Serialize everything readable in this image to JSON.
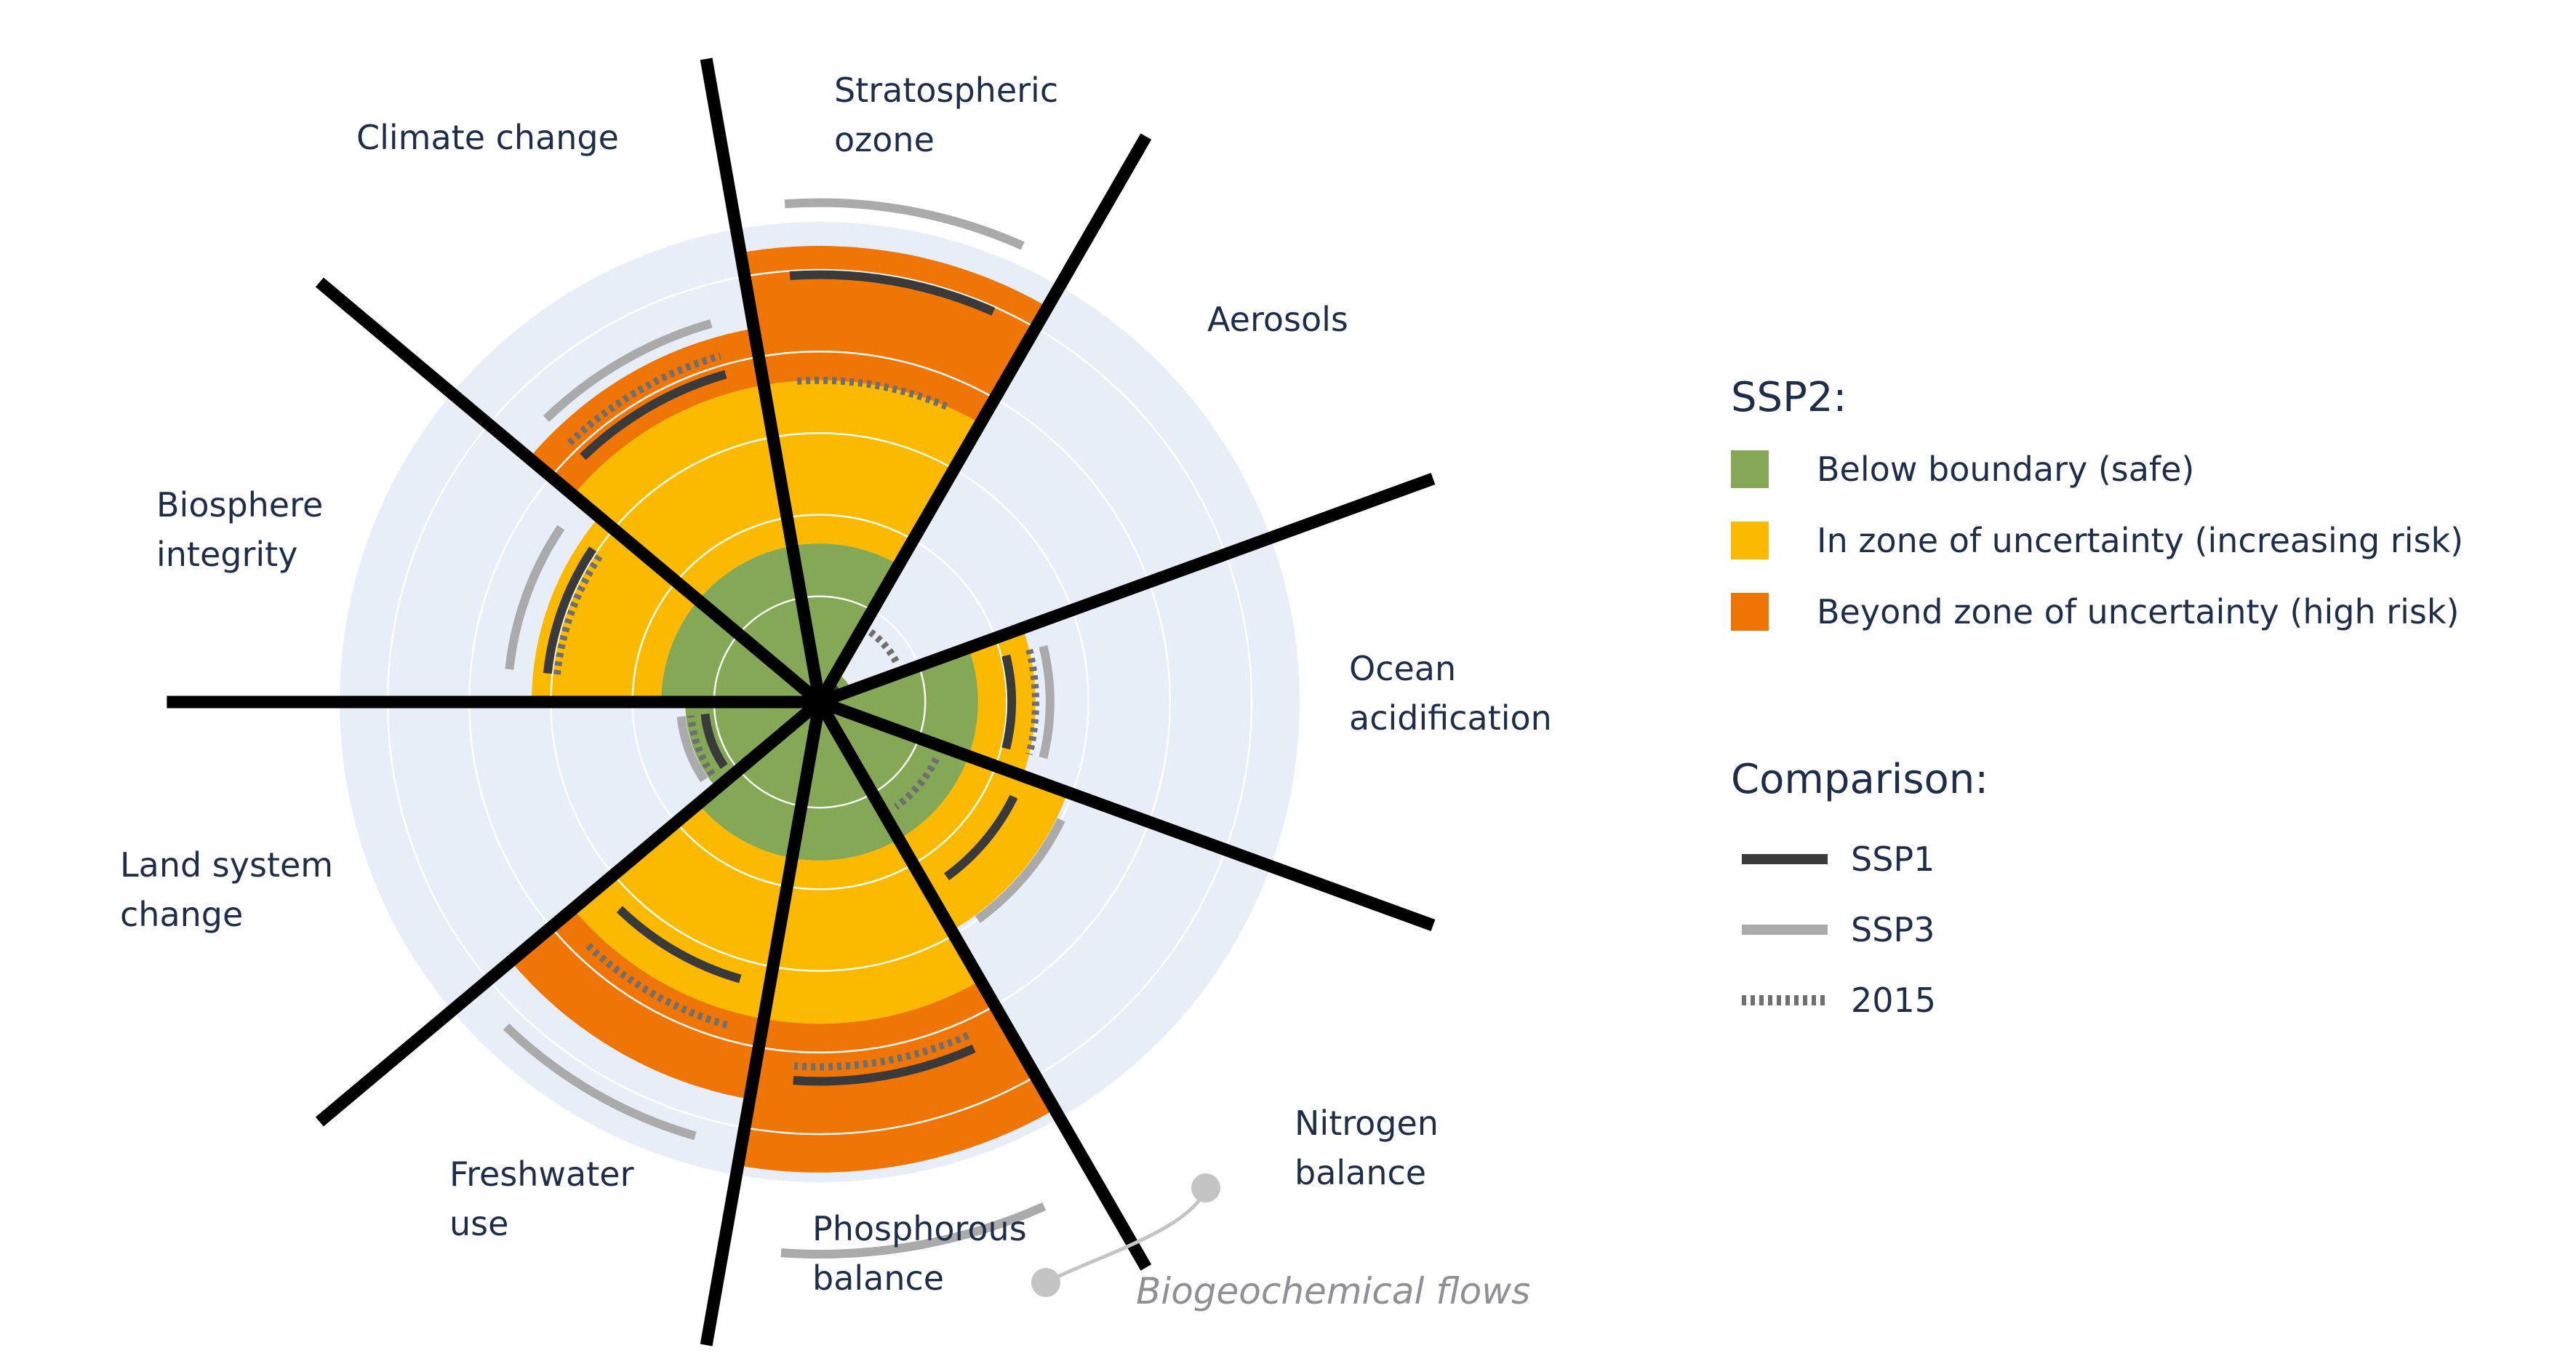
{
  "chart_data": {
    "type": "polar-bar",
    "title": "",
    "segments": [
      {
        "label": [
          "Climate change"
        ],
        "ssp2": 0.95,
        "ssp1": 0.89,
        "ssp3": 1.04,
        "y2015": 0.67
      },
      {
        "label": [
          "Stratospheric",
          "ozone"
        ],
        "ssp2": 0.07,
        "ssp1": 0.04,
        "ssp3": 0.0,
        "y2015": 0.18
      },
      {
        "label": [
          "Aerosols"
        ],
        "ssp2": 0.45,
        "ssp1": 0.4,
        "ssp3": 0.48,
        "y2015": 0.45
      },
      {
        "label": [
          "Ocean",
          "acidification"
        ],
        "ssp2": 0.55,
        "ssp1": 0.45,
        "ssp3": 0.56,
        "y2015": 0.27
      },
      {
        "label": [
          "Nitrogen",
          "balance"
        ],
        "ssp2": 0.98,
        "ssp1": 0.79,
        "ssp3": 1.15,
        "y2015": 0.76
      },
      {
        "label": [
          "Phosphorous",
          "balance"
        ],
        "ssp2": 0.84,
        "ssp1": 0.6,
        "ssp3": 0.94,
        "y2015": 0.7
      },
      {
        "label": [
          "Freshwater",
          "use"
        ],
        "ssp2": 0.28,
        "ssp1": 0.24,
        "ssp3": 0.29,
        "y2015": 0.27
      },
      {
        "label": [
          "Land system",
          "change"
        ],
        "ssp2": 0.6,
        "ssp1": 0.57,
        "ssp3": 0.65,
        "y2015": 0.55
      },
      {
        "label": [
          "Biosphere",
          "integrity"
        ],
        "ssp2": 0.79,
        "ssp1": 0.71,
        "ssp3": 0.82,
        "y2015": 0.75
      }
    ],
    "zones": {
      "safe": 0.33,
      "uncertainty": 0.67,
      "outer": 1.0
    },
    "colors": {
      "safe": "#84a855",
      "uncertainty": "#fbba00",
      "high_risk": "#ef7507",
      "background": "#e8eef8",
      "ring": "#ffffff",
      "ssp1": "#3a3a3a",
      "ssp3": "#aaaaaa",
      "y2015": "#6f6f6f",
      "divider": "#000000",
      "label": "#1d2d4c"
    },
    "group_label": "Biogeochemical flows",
    "legend": {
      "heading1": "SSP2:",
      "zones": [
        {
          "label": "Below boundary (safe)",
          "color": "#84a855"
        },
        {
          "label": "In zone of uncertainty (increasing risk)",
          "color": "#fbba00"
        },
        {
          "label": "Beyond zone of uncertainty (high risk)",
          "color": "#ef7507"
        }
      ],
      "heading2": "Comparison:",
      "lines": [
        {
          "label": "SSP1",
          "color": "#3a3a3a",
          "dashed": false
        },
        {
          "label": "SSP3",
          "color": "#aaaaaa",
          "dashed": false
        },
        {
          "label": "2015",
          "color": "#6f6f6f",
          "dashed": true
        }
      ]
    }
  }
}
